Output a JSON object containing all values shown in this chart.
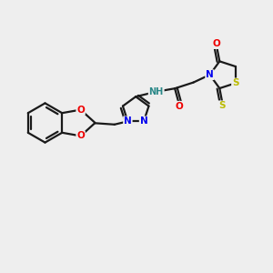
{
  "bg_color": "#eeeeee",
  "bond_color": "#1a1a1a",
  "bond_width": 1.6,
  "atom_colors": {
    "O": "#ee0000",
    "N": "#0000ee",
    "S": "#bbbb00",
    "NH": "#2a8888",
    "C": "#1a1a1a"
  },
  "figsize": [
    3.0,
    3.0
  ],
  "dpi": 100
}
